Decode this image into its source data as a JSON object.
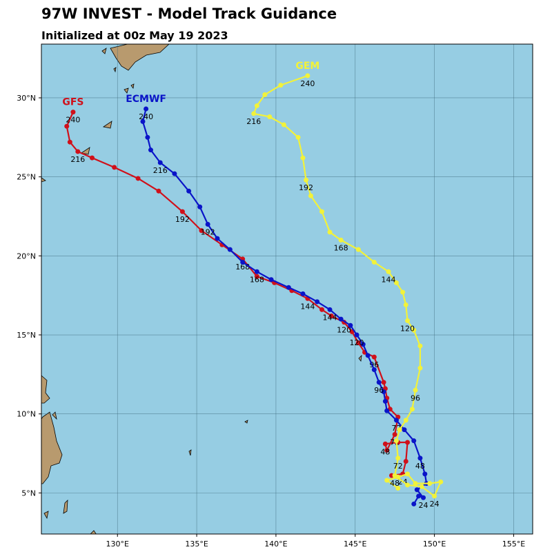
{
  "chart_data": {
    "type": "track",
    "title": "97W INVEST - Model Track Guidance",
    "subtitle": "Initialized at 00z May 19 2023",
    "xlim": [
      125.2,
      156.2
    ],
    "ylim": [
      2.4,
      33.4
    ],
    "xticks": [
      {
        "value": 130,
        "label": "130°E"
      },
      {
        "value": 135,
        "label": "135°E"
      },
      {
        "value": 140,
        "label": "140°E"
      },
      {
        "value": 145,
        "label": "145°E"
      },
      {
        "value": 150,
        "label": "150°E"
      },
      {
        "value": 155,
        "label": "155°E"
      }
    ],
    "yticks": [
      {
        "value": 5,
        "label": "5°N"
      },
      {
        "value": 10,
        "label": "10°N"
      },
      {
        "value": 15,
        "label": "15°N"
      },
      {
        "value": 20,
        "label": "20°N"
      },
      {
        "value": 25,
        "label": "25°N"
      },
      {
        "value": 30,
        "label": "30°N"
      }
    ],
    "grid": true,
    "series": [
      {
        "name": "GFS",
        "color": "#d0101a",
        "x": [
          147.3,
          148.0,
          148.2,
          148.3,
          147.7,
          146.9,
          147.0,
          147.5,
          147.7,
          147.2,
          147.0,
          146.9,
          146.8,
          146.2,
          145.6,
          145.2,
          144.8,
          144.3,
          143.5,
          142.9,
          142.0,
          141.0,
          139.9,
          138.8,
          137.9,
          136.6,
          135.3,
          134.1,
          132.6,
          131.3,
          129.8,
          128.4,
          127.5,
          127.0,
          126.8,
          127.2
        ],
        "values": [
          6.1,
          6.2,
          7.0,
          8.2,
          8.2,
          8.1,
          7.7,
          8.7,
          9.8,
          10.3,
          11.0,
          11.6,
          12.0,
          13.6,
          13.9,
          14.5,
          15.2,
          15.8,
          16.2,
          16.6,
          17.3,
          17.8,
          18.3,
          18.7,
          19.8,
          20.7,
          21.6,
          22.8,
          24.1,
          24.9,
          25.6,
          26.2,
          26.6,
          27.2,
          28.2,
          29.1
        ],
        "hour_labels": [
          null,
          "24",
          null,
          null,
          null,
          "48",
          null,
          "72",
          null,
          null,
          null,
          null,
          null,
          "96",
          null,
          null,
          null,
          "120",
          null,
          null,
          "144",
          null,
          null,
          null,
          "168",
          null,
          null,
          "192",
          null,
          null,
          null,
          null,
          "216",
          null,
          null,
          "240"
        ]
      },
      {
        "name": "ECMWF",
        "color": "#0a14c8",
        "x": [
          148.7,
          149.0,
          149.3,
          148.9,
          149.5,
          149.4,
          149.1,
          148.7,
          148.1,
          147.6,
          147.0,
          146.9,
          146.8,
          146.5,
          146.2,
          145.8,
          145.5,
          145.1,
          144.7,
          144.1,
          143.4,
          142.6,
          141.7,
          140.8,
          139.7,
          138.8,
          137.9,
          137.1,
          136.3,
          135.7,
          135.2,
          134.5,
          133.6,
          132.7,
          132.1,
          131.9,
          131.6,
          131.8
        ],
        "values": [
          4.3,
          4.8,
          4.7,
          5.2,
          5.6,
          6.2,
          7.2,
          8.3,
          9.0,
          9.6,
          10.2,
          10.8,
          11.4,
          12.0,
          12.8,
          13.7,
          14.4,
          15.0,
          15.6,
          16.0,
          16.6,
          17.1,
          17.6,
          18.0,
          18.5,
          19.0,
          19.6,
          20.4,
          21.1,
          22.0,
          23.1,
          24.1,
          25.2,
          25.9,
          26.7,
          27.5,
          28.5,
          29.3
        ],
        "hour_labels": [
          null,
          null,
          "24",
          null,
          null,
          null,
          "48",
          null,
          null,
          "72",
          null,
          null,
          null,
          "96",
          null,
          null,
          null,
          "120",
          null,
          null,
          "144",
          null,
          null,
          null,
          null,
          "168",
          null,
          null,
          null,
          "192",
          null,
          null,
          null,
          "216",
          null,
          null,
          null,
          "240"
        ]
      },
      {
        "name": "GEM",
        "color": "#f2f23a",
        "x": [
          147.7,
          147.0,
          147.7,
          148.3,
          148.8,
          149.7,
          150.4,
          150.0,
          149.2,
          148.3,
          147.5,
          147.7,
          147.6,
          147.8,
          148.2,
          148.6,
          148.8,
          149.1,
          149.1,
          148.7,
          148.3,
          148.2,
          148.0,
          147.6,
          147.1,
          146.2,
          145.2,
          144.1,
          143.4,
          142.9,
          142.2,
          141.9,
          141.7,
          141.4,
          140.5,
          139.6,
          138.6,
          138.8,
          139.3,
          140.3,
          142.0
        ],
        "values": [
          5.3,
          5.8,
          6.0,
          6.2,
          5.6,
          5.6,
          5.7,
          4.8,
          5.4,
          5.5,
          6.1,
          7.2,
          8.3,
          9.0,
          9.6,
          10.3,
          11.5,
          12.9,
          14.3,
          15.3,
          15.9,
          16.9,
          17.7,
          18.3,
          19.0,
          19.6,
          20.4,
          21.0,
          21.5,
          22.8,
          23.8,
          24.8,
          26.2,
          27.5,
          28.3,
          28.8,
          29.0,
          29.5,
          30.2,
          30.8,
          31.4
        ],
        "hour_labels": [
          null,
          null,
          null,
          null,
          null,
          null,
          null,
          "24",
          null,
          null,
          "48",
          "72",
          null,
          null,
          null,
          null,
          "96",
          null,
          null,
          null,
          "120",
          null,
          null,
          null,
          "144",
          null,
          null,
          "168",
          null,
          null,
          null,
          "192",
          null,
          null,
          null,
          null,
          "216",
          null,
          null,
          null,
          "240"
        ]
      }
    ]
  }
}
